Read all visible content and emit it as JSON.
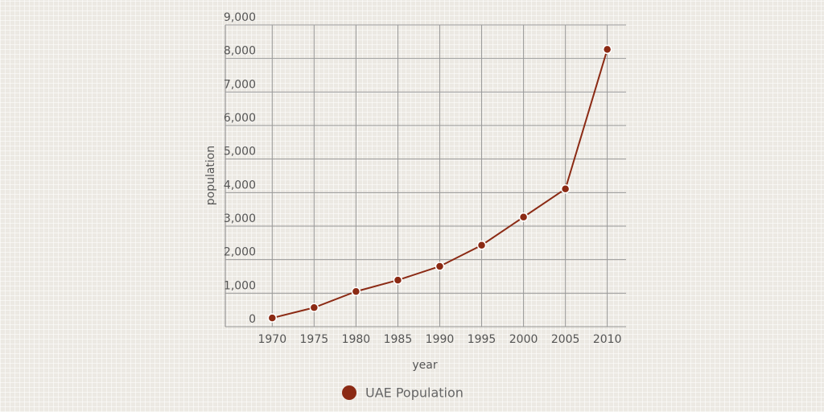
{
  "chart_data": {
    "type": "line",
    "x": [
      1970,
      1975,
      1980,
      1985,
      1990,
      1995,
      2000,
      2005,
      2010
    ],
    "series": [
      {
        "name": "UAE Population",
        "color": "#8b2a14",
        "values": [
          260,
          570,
          1050,
          1390,
          1800,
          2430,
          3270,
          4110,
          8270
        ]
      }
    ],
    "xlabel": "year",
    "ylabel": "population",
    "xlim": [
      1964.4,
      2012.24
    ],
    "xticks": [
      1970,
      1975,
      1980,
      1985,
      1990,
      1995,
      2000,
      2005,
      2010
    ],
    "ylim": [
      0,
      9000
    ],
    "yticks": [
      0,
      {
        "value": 1000,
        "label": "1,000"
      },
      {
        "value": 2000,
        "label": "2,000"
      },
      {
        "value": 3000,
        "label": "3,000"
      },
      {
        "value": 4000,
        "label": "4,000"
      },
      {
        "value": 5000,
        "label": "5,000"
      },
      {
        "value": 6000,
        "label": "6,000"
      },
      {
        "value": 7000,
        "label": "7,000"
      },
      {
        "value": 8000,
        "label": "8,000"
      },
      {
        "value": 9000,
        "label": "9,000"
      }
    ],
    "grid": true,
    "legend": "bottom"
  }
}
